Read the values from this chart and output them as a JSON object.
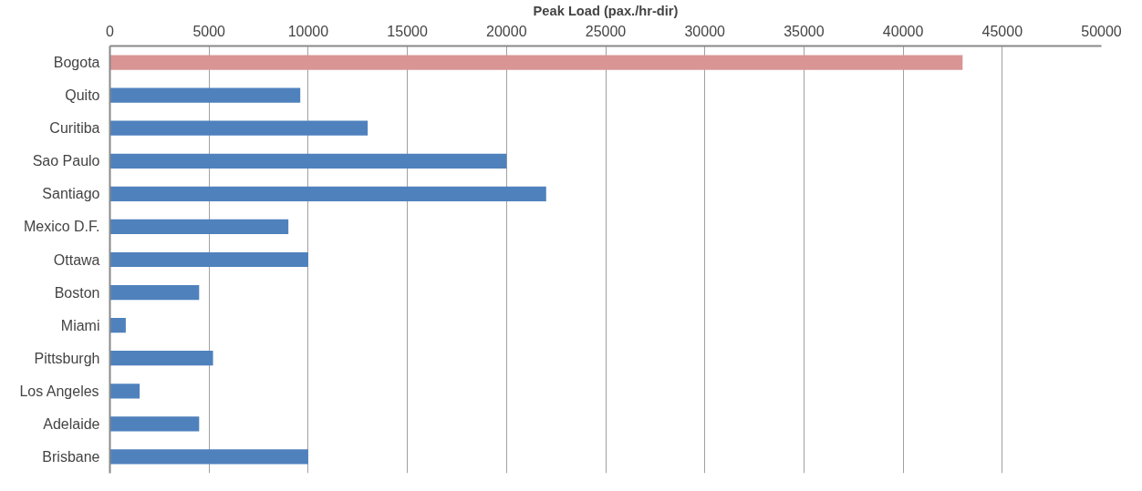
{
  "chart_data": {
    "type": "bar",
    "orientation": "horizontal",
    "xlabel": "Peak Load (pax./hr-dir)",
    "categories": [
      "Bogota",
      "Quito",
      "Curitiba",
      "Sao Paulo",
      "Santiago",
      "Mexico D.F.",
      "Ottawa",
      "Boston",
      "Miami",
      "Pittsburgh",
      "Los Angeles",
      "Adelaide",
      "Brisbane"
    ],
    "values": [
      43000,
      9600,
      13000,
      20000,
      22000,
      9000,
      10000,
      4500,
      800,
      5200,
      1500,
      4500,
      10000
    ],
    "colors": [
      "#d99594",
      "#4f81bd",
      "#4f81bd",
      "#4f81bd",
      "#4f81bd",
      "#4f81bd",
      "#4f81bd",
      "#4f81bd",
      "#4f81bd",
      "#4f81bd",
      "#4f81bd",
      "#4f81bd",
      "#4f81bd"
    ],
    "xlim": [
      0,
      50000
    ],
    "xticks": [
      0,
      5000,
      10000,
      15000,
      20000,
      25000,
      30000,
      35000,
      40000,
      45000,
      50000
    ],
    "grid": "x"
  }
}
